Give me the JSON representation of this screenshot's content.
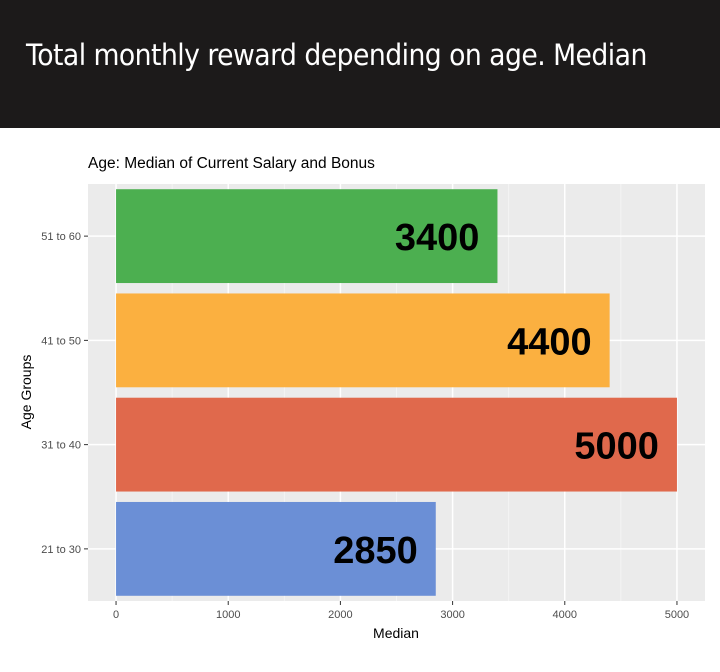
{
  "header": {
    "title": "Total monthly reward depending on age. Median"
  },
  "chart_data": {
    "type": "bar",
    "orientation": "horizontal",
    "title": "Age: Median of Current Salary and Bonus",
    "xlabel": "Median",
    "ylabel": "Age Groups",
    "categories": [
      "21 to 30",
      "31 to 40",
      "41 to 50",
      "51 to 60"
    ],
    "values": [
      2850,
      5000,
      4400,
      3400
    ],
    "data_labels": [
      "2850",
      "5000",
      "4400",
      "3400"
    ],
    "bar_colors": [
      "#6b8fd6",
      "#e0694c",
      "#fbb040",
      "#4caf50"
    ],
    "xlim": [
      -250,
      5250
    ],
    "x_ticks": [
      0,
      1000,
      2000,
      3000,
      4000,
      5000
    ],
    "x_tick_labels": [
      "0",
      "1000",
      "2000",
      "3000",
      "4000",
      "5000"
    ],
    "grid": true,
    "panel_background": "#ebebeb",
    "legend": "none"
  }
}
